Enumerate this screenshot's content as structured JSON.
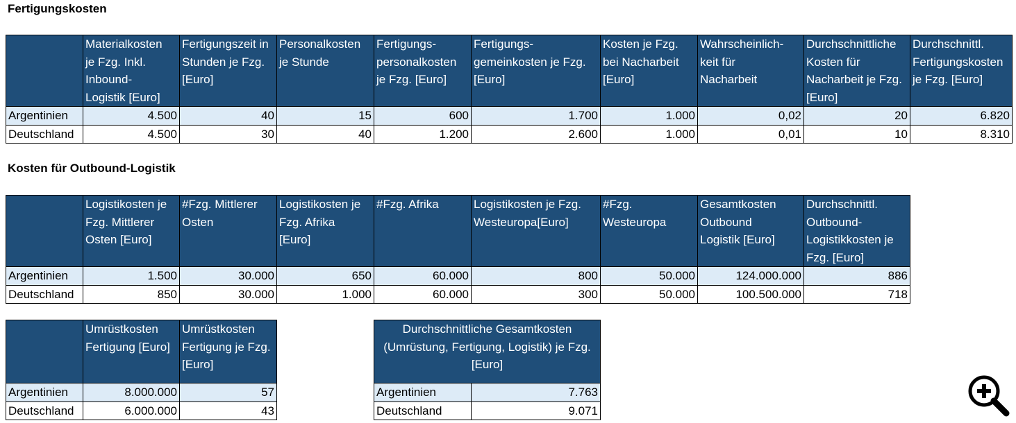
{
  "sections": {
    "production_title": "Fertigungskosten",
    "outbound_title": "Kosten für Outbound-Logistik"
  },
  "production_table": {
    "headers": [
      "",
      "Materialkosten\nje Fzg. Inkl.\nInbound-\nLogistik [Euro]",
      "Fertigungszeit in\nStunden je Fzg.\n[Euro]",
      "Personalkosten\nje Stunde",
      "Fertigungs-\npersonalkosten\nje Fzg. [Euro]",
      "Fertigungs-\ngemeinkosten je Fzg.\n[Euro]",
      "Kosten je Fzg.\nbei Nacharbeit\n[Euro]",
      "Wahrscheinlich-\nkeit für\nNacharbeit",
      "Durchschnittliche\nKosten für\nNacharbeit je Fzg.\n[Euro]",
      "Durchschnittl.\nFertigungskosten\nje Fzg. [Euro]"
    ],
    "rows": [
      [
        "Argentinien",
        "4.500",
        "40",
        "15",
        "600",
        "1.700",
        "1.000",
        "0,02",
        "20",
        "6.820"
      ],
      [
        "Deutschland",
        "4.500",
        "30",
        "40",
        "1.200",
        "2.600",
        "1.000",
        "0,01",
        "10",
        "8.310"
      ]
    ]
  },
  "outbound_table": {
    "headers": [
      "",
      "Logistikosten je\nFzg. Mittlerer\nOsten [Euro]",
      "#Fzg. Mittlerer\nOsten",
      "Logistikosten je\nFzg. Afrika\n[Euro]",
      "#Fzg. Afrika",
      "Logistikosten je Fzg.\nWesteuropa[Euro]",
      "#Fzg.\nWesteuropa",
      "Gesamtkosten\nOutbound\nLogistik [Euro]",
      "Durchschnittl.\nOutbound-\nLogistikkosten je\nFzg. [Euro]"
    ],
    "rows": [
      [
        "Argentinien",
        "1.500",
        "30.000",
        "650",
        "60.000",
        "800",
        "50.000",
        "124.000.000",
        "886"
      ],
      [
        "Deutschland",
        "850",
        "30.000",
        "1.000",
        "60.000",
        "300",
        "50.000",
        "100.500.000",
        "718"
      ]
    ]
  },
  "conversion_table": {
    "headers": [
      "",
      "Umrüstkosten\nFertigung [Euro]",
      "Umrüstkosten\nFertigung je Fzg.\n[Euro]"
    ],
    "rows": [
      [
        "Argentinien",
        "8.000.000",
        "57"
      ],
      [
        "Deutschland",
        "6.000.000",
        "43"
      ]
    ]
  },
  "total_table": {
    "header": "Durchschnittliche Gesamtkosten\n(Umrüstung, Fertigung, Logistik) je Fzg.\n[Euro]",
    "rows": [
      [
        "Argentinien",
        "7.763"
      ],
      [
        "Deutschland",
        "9.071"
      ]
    ]
  },
  "icons": {
    "zoom": "zoom-in-icon"
  },
  "colors": {
    "header_bg": "#1f4e79",
    "row_shaded": "#ddebf7"
  }
}
